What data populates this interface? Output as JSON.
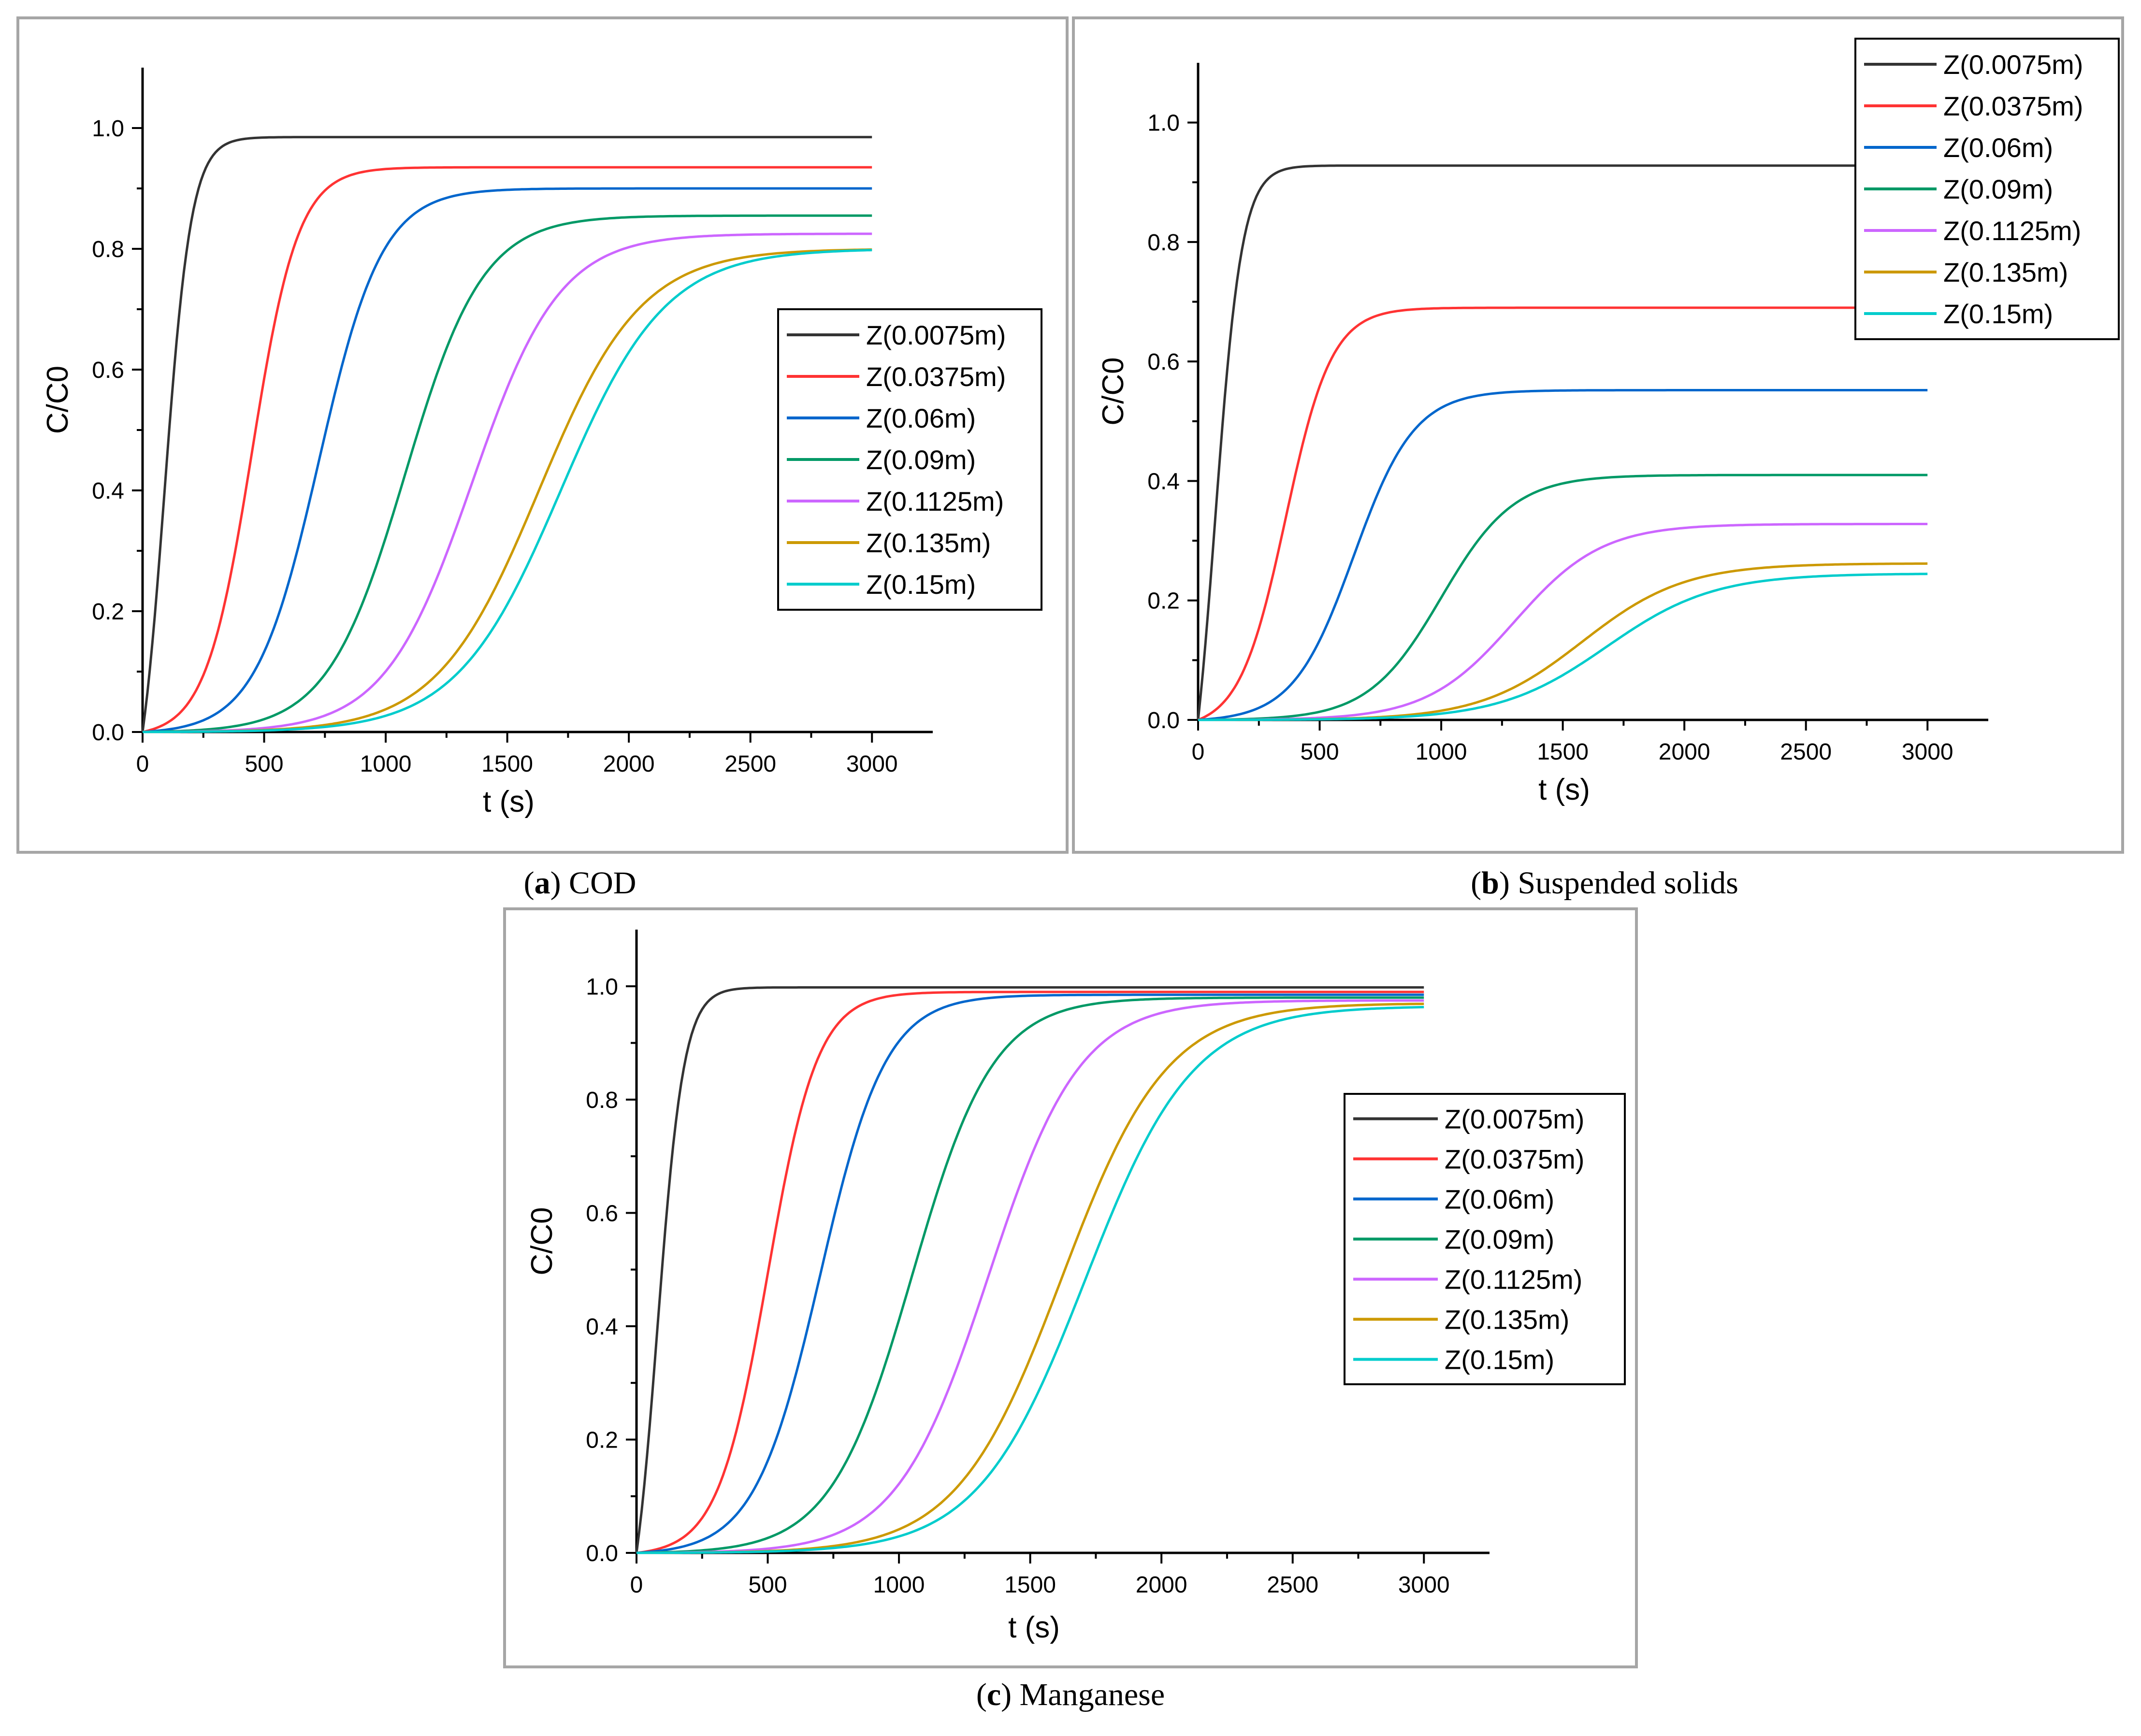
{
  "panels": [
    {
      "id": "a",
      "caption_letter": "a",
      "caption_text": "COD",
      "chart_data": {
        "type": "line",
        "title": "",
        "xlabel": "t (s)",
        "ylabel": "C/C0",
        "xlim": [
          0,
          3250
        ],
        "ylim": [
          0,
          1.1
        ],
        "xticks": [
          0,
          500,
          1000,
          1500,
          2000,
          2500,
          3000
        ],
        "yticks": [
          0.0,
          0.2,
          0.4,
          0.6,
          0.8,
          1.0
        ],
        "legend_position": "center-right",
        "series": [
          {
            "name": "Z(0.0075m)",
            "color": "#333333",
            "plateau": 0.985,
            "midpoint": 90,
            "spread": 55
          },
          {
            "name": "Z(0.0375m)",
            "color": "#ff3333",
            "plateau": 0.935,
            "midpoint": 450,
            "spread": 95
          },
          {
            "name": "Z(0.06m)",
            "color": "#0066cc",
            "plateau": 0.9,
            "midpoint": 725,
            "spread": 130
          },
          {
            "name": "Z(0.09m)",
            "color": "#009966",
            "plateau": 0.855,
            "midpoint": 1080,
            "spread": 160
          },
          {
            "name": "Z(0.1125m)",
            "color": "#cc66ff",
            "plateau": 0.825,
            "midpoint": 1355,
            "spread": 180
          },
          {
            "name": "Z(0.135m)",
            "color": "#cc9900",
            "plateau": 0.8,
            "midpoint": 1630,
            "spread": 210
          },
          {
            "name": "Z(0.15m)",
            "color": "#00cccc",
            "plateau": 0.8,
            "midpoint": 1720,
            "spread": 215
          }
        ]
      }
    },
    {
      "id": "b",
      "caption_letter": "b",
      "caption_text": "Suspended solids",
      "chart_data": {
        "type": "line",
        "title": "",
        "xlabel": "t (s)",
        "ylabel": "C/C0",
        "xlim": [
          0,
          3250
        ],
        "ylim": [
          0,
          1.1
        ],
        "xticks": [
          0,
          500,
          1000,
          1500,
          2000,
          2500,
          3000
        ],
        "yticks": [
          0.0,
          0.2,
          0.4,
          0.6,
          0.8,
          1.0
        ],
        "legend_position": "top-right",
        "series": [
          {
            "name": "Z(0.0075m)",
            "color": "#333333",
            "plateau": 0.928,
            "midpoint": 70,
            "spread": 55
          },
          {
            "name": "Z(0.0375m)",
            "color": "#ff3333",
            "plateau": 0.69,
            "midpoint": 360,
            "spread": 95
          },
          {
            "name": "Z(0.06m)",
            "color": "#0066cc",
            "plateau": 0.552,
            "midpoint": 640,
            "spread": 125
          },
          {
            "name": "Z(0.09m)",
            "color": "#009966",
            "plateau": 0.41,
            "midpoint": 1000,
            "spread": 150
          },
          {
            "name": "Z(0.1125m)",
            "color": "#cc66ff",
            "plateau": 0.328,
            "midpoint": 1300,
            "spread": 180
          },
          {
            "name": "Z(0.135m)",
            "color": "#cc9900",
            "plateau": 0.262,
            "midpoint": 1580,
            "spread": 210
          },
          {
            "name": "Z(0.15m)",
            "color": "#00cccc",
            "plateau": 0.245,
            "midpoint": 1680,
            "spread": 220
          }
        ]
      }
    },
    {
      "id": "c",
      "caption_letter": "c",
      "caption_text": "Manganese",
      "chart_data": {
        "type": "line",
        "title": "",
        "xlabel": "t (s)",
        "ylabel": "C/C0",
        "xlim": [
          0,
          3250
        ],
        "ylim": [
          0,
          1.1
        ],
        "xticks": [
          0,
          500,
          1000,
          1500,
          2000,
          2500,
          3000
        ],
        "yticks": [
          0.0,
          0.2,
          0.4,
          0.6,
          0.8,
          1.0
        ],
        "legend_position": "center-right",
        "series": [
          {
            "name": "Z(0.0075m)",
            "color": "#333333",
            "plateau": 0.998,
            "midpoint": 80,
            "spread": 50
          },
          {
            "name": "Z(0.0375m)",
            "color": "#ff3333",
            "plateau": 0.99,
            "midpoint": 500,
            "spread": 95
          },
          {
            "name": "Z(0.06m)",
            "color": "#0066cc",
            "plateau": 0.985,
            "midpoint": 700,
            "spread": 125
          },
          {
            "name": "Z(0.09m)",
            "color": "#009966",
            "plateau": 0.98,
            "midpoint": 1050,
            "spread": 155
          },
          {
            "name": "Z(0.1125m)",
            "color": "#cc66ff",
            "plateau": 0.975,
            "midpoint": 1340,
            "spread": 175
          },
          {
            "name": "Z(0.135m)",
            "color": "#cc9900",
            "plateau": 0.97,
            "midpoint": 1620,
            "spread": 200
          },
          {
            "name": "Z(0.15m)",
            "color": "#00cccc",
            "plateau": 0.965,
            "midpoint": 1710,
            "spread": 205
          }
        ]
      }
    }
  ]
}
